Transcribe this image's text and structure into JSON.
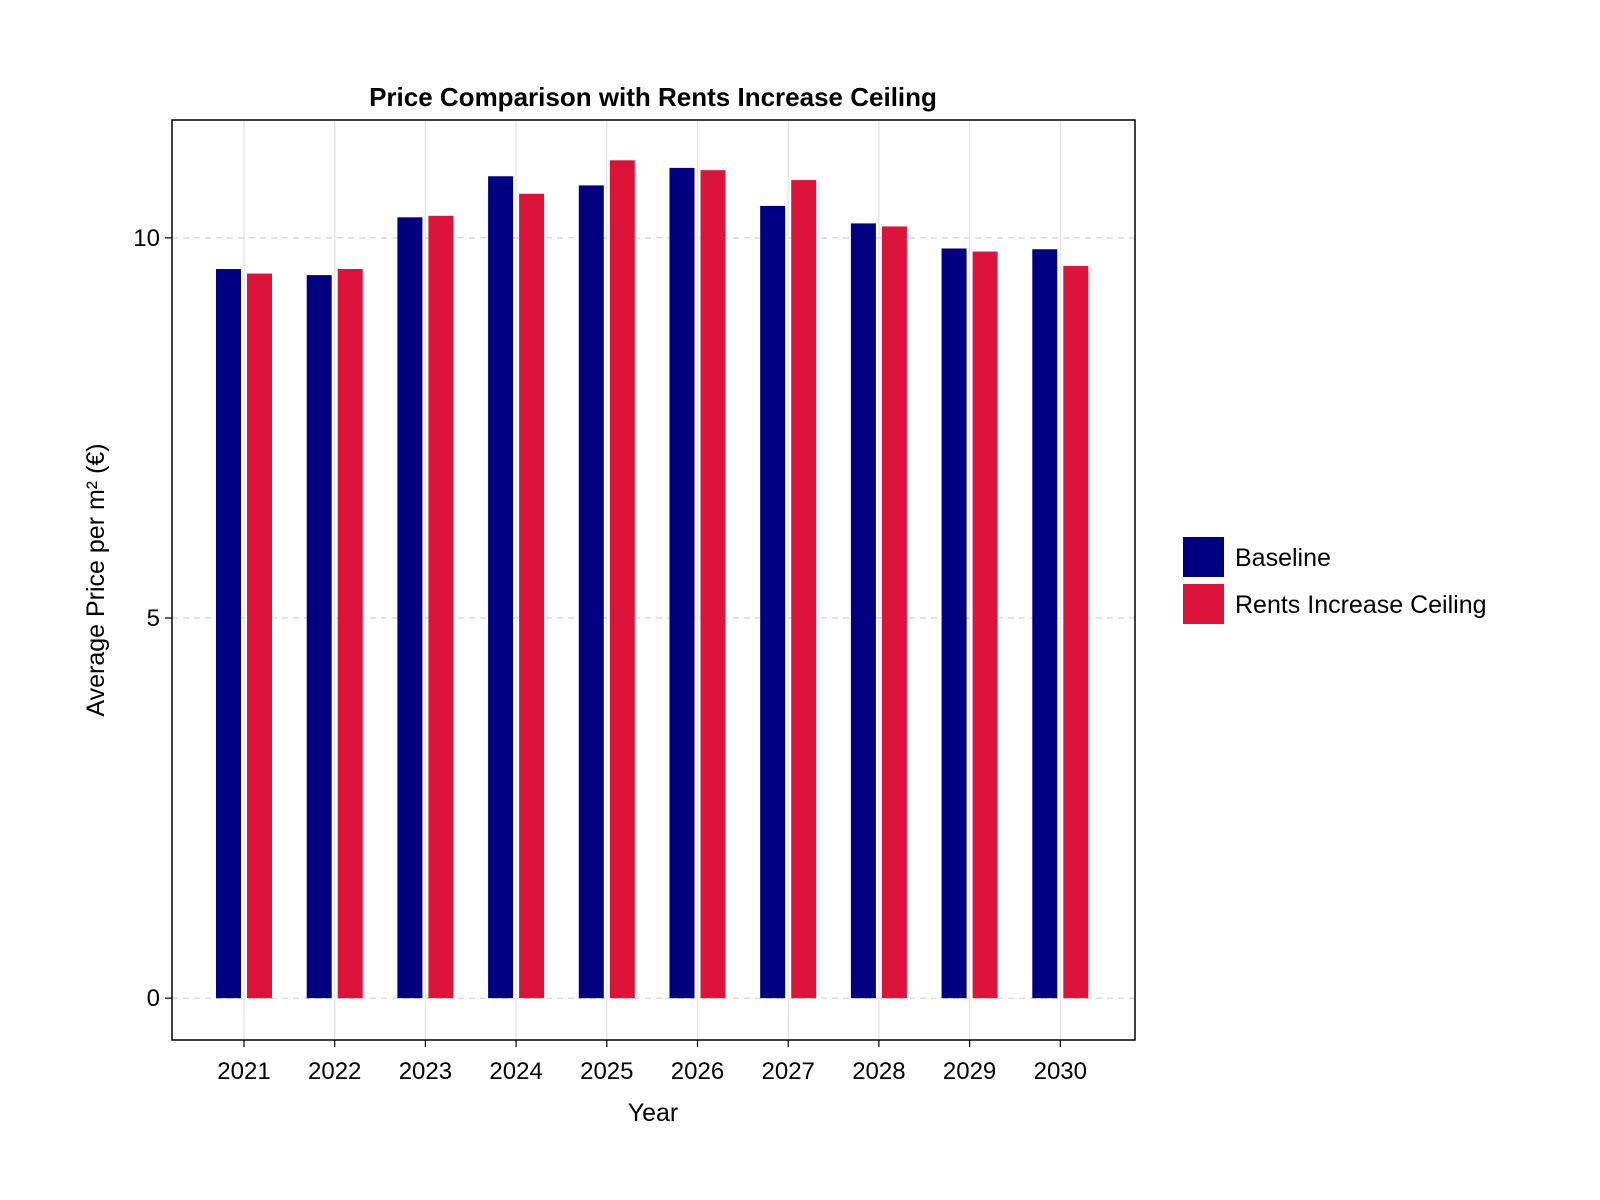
{
  "chart_data": {
    "type": "bar",
    "title": "Price Comparison with Rents Increase Ceiling",
    "xlabel": "Year",
    "ylabel": "Average Price per m² (€)",
    "categories": [
      "2021",
      "2022",
      "2023",
      "2024",
      "2025",
      "2026",
      "2027",
      "2028",
      "2029",
      "2030"
    ],
    "series": [
      {
        "name": "Baseline",
        "color": "#000080",
        "values": [
          9.59,
          9.51,
          10.27,
          10.81,
          10.69,
          10.92,
          10.42,
          10.19,
          9.86,
          9.85
        ]
      },
      {
        "name": "Rents Increase Ceiling",
        "color": "#DC143C",
        "values": [
          9.53,
          9.59,
          10.29,
          10.58,
          11.02,
          10.89,
          10.76,
          10.15,
          9.82,
          9.63
        ]
      }
    ],
    "yticks": [
      "0",
      "5",
      "10"
    ],
    "ylim": [
      -0.55,
      11.55
    ],
    "grid": {
      "x": "solid",
      "y": "dashed"
    },
    "legend_position": "right"
  }
}
